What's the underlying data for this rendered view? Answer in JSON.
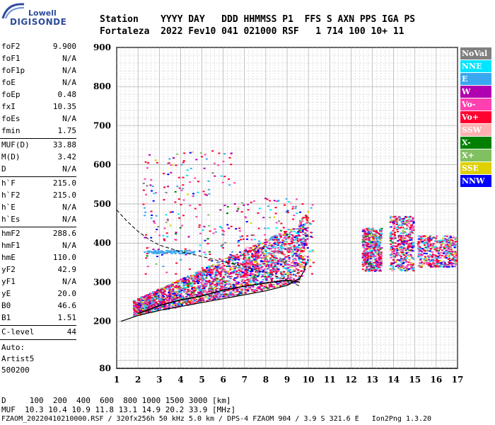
{
  "logo": {
    "line1": "Lowell",
    "line2": "DIGISONDE"
  },
  "header": {
    "line1": "Station    YYYY DAY   DDD HHMMSS P1  FFS S AXN PPS IGA PS",
    "line2": "Fortaleza  2022 Fev10 041 021000 RSF   1 714 100 10+ 11"
  },
  "params": [
    {
      "name": "foF2",
      "value": "9.900"
    },
    {
      "name": "foF1",
      "value": "N/A"
    },
    {
      "name": "foF1p",
      "value": "N/A"
    },
    {
      "name": "foE",
      "value": "N/A"
    },
    {
      "name": "foEp",
      "value": "0.48"
    },
    {
      "name": "fxI",
      "value": "10.35"
    },
    {
      "name": "foEs",
      "value": "N/A"
    },
    {
      "name": "fmin",
      "value": "1.75"
    },
    {
      "name": "MUF(D)",
      "value": "33.88"
    },
    {
      "name": "M(D)",
      "value": "3.42"
    },
    {
      "name": "D",
      "value": "N/A"
    },
    {
      "name": "h`F",
      "value": "215.0"
    },
    {
      "name": "h`F2",
      "value": "215.0"
    },
    {
      "name": "h`E",
      "value": "N/A"
    },
    {
      "name": "h`Es",
      "value": "N/A"
    },
    {
      "name": "hmF2",
      "value": "288.6"
    },
    {
      "name": "hmF1",
      "value": "N/A"
    },
    {
      "name": "hmE",
      "value": "110.0"
    },
    {
      "name": "yF2",
      "value": "42.9"
    },
    {
      "name": "yF1",
      "value": "N/A"
    },
    {
      "name": "yE",
      "value": "20.0"
    },
    {
      "name": "B0",
      "value": "46.6"
    },
    {
      "name": "B1",
      "value": "1.51"
    },
    {
      "name": "C-level",
      "value": "44"
    }
  ],
  "auto": {
    "line1": "Auto:",
    "line2": "Artist5",
    "line3": "500200"
  },
  "bottom": {
    "d_line": "D     100  200  400  600  800 1000 1500 3000 [km]",
    "muf_line": "MUF  10.3 10.4 10.9 11.8 13.1 14.9 20.2 33.9 [MHz]",
    "file_line": "FZAOM_20220410210000.RSF / 320fx256h 50 kHz 5.0 km / DPS-4 FZAOM 904 / 3.9 S 321.6 E   Ion2Png 1.3.20"
  },
  "legend": [
    {
      "label": "NoVal",
      "color": "#808080"
    },
    {
      "label": "NNE",
      "color": "#00e5ff"
    },
    {
      "label": "E",
      "color": "#3aa8f0"
    },
    {
      "label": "W",
      "color": "#b000b0"
    },
    {
      "label": "Vo-",
      "color": "#ff40b0"
    },
    {
      "label": "Vo+",
      "color": "#ff0030"
    },
    {
      "label": "SSW",
      "color": "#ffb0b0"
    },
    {
      "label": "X-",
      "color": "#008000"
    },
    {
      "label": "X+",
      "color": "#80c060"
    },
    {
      "label": "SSE",
      "color": "#e0d000"
    },
    {
      "label": "NNW",
      "color": "#0000ff"
    }
  ],
  "chart_data": {
    "type": "scatter",
    "xlim": [
      1,
      17
    ],
    "ylim": [
      80,
      900
    ],
    "x_ticks": [
      1,
      2,
      3,
      4,
      5,
      6,
      7,
      8,
      9,
      10,
      11,
      12,
      13,
      14,
      15,
      16,
      17
    ],
    "y_ticks": [
      80,
      200,
      300,
      400,
      500,
      600,
      700,
      800,
      900
    ],
    "grid": true,
    "legend_placement": "right",
    "trace_solid": [
      [
        1.2,
        200
      ],
      [
        2,
        215
      ],
      [
        3,
        228
      ],
      [
        4,
        238
      ],
      [
        5,
        248
      ],
      [
        6,
        258
      ],
      [
        7,
        268
      ],
      [
        8,
        278
      ],
      [
        9,
        292
      ],
      [
        9.6,
        310
      ],
      [
        9.8,
        330
      ],
      [
        9.9,
        350
      ]
    ],
    "trace_dashed": [
      [
        1,
        485
      ],
      [
        1.5,
        455
      ],
      [
        2,
        430
      ],
      [
        2.5,
        410
      ],
      [
        3,
        395
      ],
      [
        4,
        378
      ],
      [
        5,
        366
      ],
      [
        6,
        352
      ],
      [
        7,
        340
      ],
      [
        8,
        325
      ],
      [
        9,
        305
      ],
      [
        9.6,
        290
      ]
    ],
    "trace_black": [
      [
        2,
        220
      ],
      [
        3,
        240
      ],
      [
        4,
        255
      ],
      [
        5,
        265
      ],
      [
        6,
        280
      ],
      [
        7,
        290
      ],
      [
        8,
        298
      ],
      [
        9,
        305
      ],
      [
        9.6,
        300
      ]
    ]
  }
}
